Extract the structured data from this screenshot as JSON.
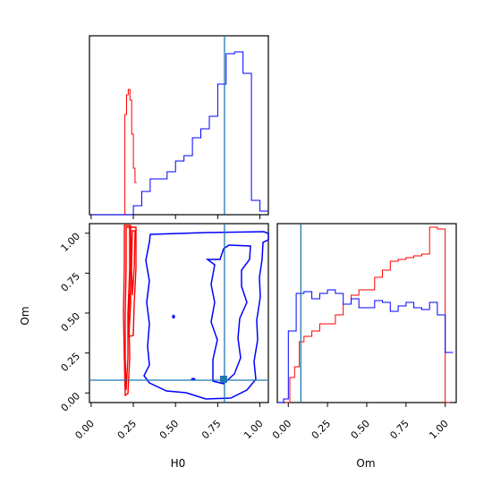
{
  "chart_data": [
    {
      "type": "histogram",
      "panel": "H0 marginal",
      "xlim": [
        -0.01,
        1.05
      ],
      "ylim": [
        0,
        1
      ],
      "truth_line": 0.79,
      "series": [
        {
          "color": "#ff0000",
          "bins_x": [
            0.19,
            0.2,
            0.21,
            0.22,
            0.23,
            0.24,
            0.25,
            0.26,
            0.27
          ],
          "values": [
            0.0,
            0.56,
            0.67,
            0.7,
            0.64,
            0.45,
            0.26,
            0.18,
            0.0
          ]
        },
        {
          "color": "#0000ff",
          "bins_x": [
            0.0,
            0.05,
            0.1,
            0.15,
            0.2,
            0.25,
            0.3,
            0.35,
            0.4,
            0.45,
            0.5,
            0.55,
            0.6,
            0.65,
            0.7,
            0.75,
            0.8,
            0.85,
            0.9,
            0.95,
            1.0,
            1.05
          ],
          "values": [
            0.0,
            0.0,
            0.0,
            0.0,
            0.0,
            0.05,
            0.13,
            0.2,
            0.2,
            0.24,
            0.3,
            0.33,
            0.43,
            0.48,
            0.55,
            0.73,
            0.9,
            0.91,
            0.79,
            0.08,
            0.02,
            0.0
          ]
        }
      ]
    },
    {
      "type": "contour",
      "panel": "H0 vs Om",
      "xlabel": "H0",
      "ylabel": "Om",
      "xlim": [
        -0.01,
        1.05
      ],
      "ylim": [
        -0.06,
        1.06
      ],
      "xticks": [
        "0.00",
        "0.25",
        "0.50",
        "0.75",
        "1.00"
      ],
      "yticks": [
        "0.00",
        "0.25",
        "0.50",
        "0.75",
        "1.00"
      ],
      "truth_lines": {
        "x": 0.79,
        "y": 0.08
      },
      "truth_point": {
        "x": 0.79,
        "y": 0.08
      },
      "series": [
        {
          "color": "#ff0000",
          "region": {
            "x": [
              0.2,
              0.27
            ],
            "y": [
              0.0,
              1.05
            ]
          }
        },
        {
          "color": "#0000ff",
          "region": {
            "x": [
              0.18,
              1.05
            ],
            "y": [
              0.0,
              1.03
            ]
          }
        }
      ]
    },
    {
      "type": "histogram",
      "panel": "Om marginal",
      "xlabel": "Om",
      "xlim": [
        -0.07,
        1.07
      ],
      "ylim": [
        0,
        1
      ],
      "xticks": [
        "0.00",
        "0.25",
        "0.50",
        "0.75",
        "1.00"
      ],
      "truth_line": 0.08,
      "series": [
        {
          "color": "#ff0000",
          "bins_x": [
            -0.02,
            0.01,
            0.04,
            0.07,
            0.1,
            0.15,
            0.2,
            0.25,
            0.3,
            0.35,
            0.4,
            0.45,
            0.5,
            0.55,
            0.6,
            0.65,
            0.7,
            0.75,
            0.8,
            0.85,
            0.9,
            0.95,
            1.0,
            1.03
          ],
          "values": [
            0.0,
            0.14,
            0.2,
            0.34,
            0.37,
            0.4,
            0.44,
            0.44,
            0.49,
            0.55,
            0.6,
            0.63,
            0.63,
            0.7,
            0.74,
            0.79,
            0.8,
            0.81,
            0.82,
            0.83,
            0.98,
            0.97,
            0.0,
            0.0
          ]
        },
        {
          "color": "#0000ff",
          "bins_x": [
            -0.1,
            -0.03,
            0.0,
            0.05,
            0.1,
            0.15,
            0.2,
            0.25,
            0.3,
            0.35,
            0.4,
            0.45,
            0.5,
            0.55,
            0.6,
            0.65,
            0.7,
            0.75,
            0.8,
            0.85,
            0.9,
            0.95,
            1.0,
            1.05
          ],
          "values": [
            0.0,
            0.02,
            0.4,
            0.61,
            0.62,
            0.58,
            0.61,
            0.63,
            0.61,
            0.55,
            0.58,
            0.53,
            0.53,
            0.57,
            0.56,
            0.51,
            0.54,
            0.56,
            0.53,
            0.52,
            0.56,
            0.49,
            0.28,
            0.02
          ]
        }
      ]
    }
  ]
}
